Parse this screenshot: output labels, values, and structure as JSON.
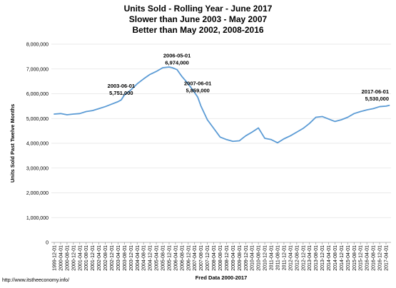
{
  "chart_data": {
    "type": "line",
    "title_lines": [
      "Units Sold - Rolling Year - June 2017",
      "Slower than June 2003 - May 2007",
      "Better than May 2002, 2008-2016"
    ],
    "xlabel": "Fred Data 2000-2017",
    "ylabel": "Units Sold Past Twelve Months",
    "ylim": [
      0,
      8000000
    ],
    "y_ticks": [
      "0",
      "1,000,000",
      "2,000,000",
      "3,000,000",
      "4,000,000",
      "5,000,000",
      "6,000,000",
      "7,000,000",
      "8,000,000"
    ],
    "grid": true,
    "series_color": "#5b9bd5",
    "x_ticks": [
      "1999-12-01",
      "2000-04-01",
      "2000-08-01",
      "2000-12-01",
      "2001-04-01",
      "2001-08-01",
      "2001-12-01",
      "2002-04-01",
      "2002-08-01",
      "2002-12-01",
      "2003-04-01",
      "2003-08-01",
      "2003-12-01",
      "2004-04-01",
      "2004-08-01",
      "2004-12-01",
      "2005-04-01",
      "2005-08-01",
      "2005-12-01",
      "2006-04-01",
      "2006-08-01",
      "2006-12-01",
      "2007-04-01",
      "2007-08-01",
      "2007-12-01",
      "2008-04-01",
      "2008-08-01",
      "2008-12-01",
      "2009-04-01",
      "2009-08-01",
      "2009-12-01",
      "2010-04-01",
      "2010-08-01",
      "2010-12-01",
      "2011-04-01",
      "2011-08-01",
      "2011-12-01",
      "2012-04-01",
      "2012-08-01",
      "2012-12-01",
      "2013-04-01",
      "2013-08-01",
      "2013-12-01",
      "2014-04-01",
      "2014-08-01",
      "2014-12-01",
      "2015-04-01",
      "2015-08-01",
      "2015-12-01",
      "2016-04-01",
      "2016-08-01",
      "2016-12-01",
      "2017-04-01"
    ],
    "series": [
      {
        "points": [
          [
            "1999-12-01",
            5180000
          ],
          [
            "2000-04-01",
            5200000
          ],
          [
            "2000-08-01",
            5150000
          ],
          [
            "2000-12-01",
            5180000
          ],
          [
            "2001-04-01",
            5200000
          ],
          [
            "2001-08-01",
            5280000
          ],
          [
            "2001-12-01",
            5320000
          ],
          [
            "2002-04-01",
            5400000
          ],
          [
            "2002-08-01",
            5480000
          ],
          [
            "2002-12-01",
            5580000
          ],
          [
            "2003-04-01",
            5680000
          ],
          [
            "2003-06-01",
            5751000
          ],
          [
            "2003-08-01",
            5950000
          ],
          [
            "2003-12-01",
            6150000
          ],
          [
            "2004-04-01",
            6400000
          ],
          [
            "2004-08-01",
            6600000
          ],
          [
            "2004-12-01",
            6780000
          ],
          [
            "2005-04-01",
            6900000
          ],
          [
            "2005-08-01",
            7050000
          ],
          [
            "2005-12-01",
            7080000
          ],
          [
            "2006-02-01",
            7050000
          ],
          [
            "2006-05-01",
            6974000
          ],
          [
            "2006-08-01",
            6700000
          ],
          [
            "2006-12-01",
            6400000
          ],
          [
            "2007-04-01",
            6050000
          ],
          [
            "2007-06-01",
            5859000
          ],
          [
            "2007-08-01",
            5500000
          ],
          [
            "2007-12-01",
            4950000
          ],
          [
            "2008-04-01",
            4600000
          ],
          [
            "2008-08-01",
            4250000
          ],
          [
            "2008-12-01",
            4150000
          ],
          [
            "2009-04-01",
            4080000
          ],
          [
            "2009-08-01",
            4100000
          ],
          [
            "2009-12-01",
            4300000
          ],
          [
            "2010-04-01",
            4450000
          ],
          [
            "2010-08-01",
            4620000
          ],
          [
            "2010-12-01",
            4200000
          ],
          [
            "2011-04-01",
            4150000
          ],
          [
            "2011-08-01",
            4020000
          ],
          [
            "2011-12-01",
            4180000
          ],
          [
            "2012-04-01",
            4300000
          ],
          [
            "2012-08-01",
            4450000
          ],
          [
            "2012-12-01",
            4600000
          ],
          [
            "2013-04-01",
            4800000
          ],
          [
            "2013-08-01",
            5050000
          ],
          [
            "2013-12-01",
            5080000
          ],
          [
            "2014-04-01",
            4980000
          ],
          [
            "2014-08-01",
            4880000
          ],
          [
            "2014-12-01",
            4950000
          ],
          [
            "2015-04-01",
            5050000
          ],
          [
            "2015-08-01",
            5200000
          ],
          [
            "2015-12-01",
            5280000
          ],
          [
            "2016-04-01",
            5350000
          ],
          [
            "2016-08-01",
            5400000
          ],
          [
            "2016-12-01",
            5480000
          ],
          [
            "2017-04-01",
            5500000
          ],
          [
            "2017-06-01",
            5530000
          ]
        ]
      }
    ],
    "annotations": [
      {
        "date": "2003-06-01",
        "value_label": "5,751,000"
      },
      {
        "date": "2006-05-01",
        "value_label": "6,974,000"
      },
      {
        "date": "2007-06-01",
        "value_label": "5,859,000"
      },
      {
        "date": "2017-06-01",
        "value_label": "5,530,000"
      }
    ]
  },
  "footer": {
    "url": "http://www.itstheeconomy.info/"
  }
}
